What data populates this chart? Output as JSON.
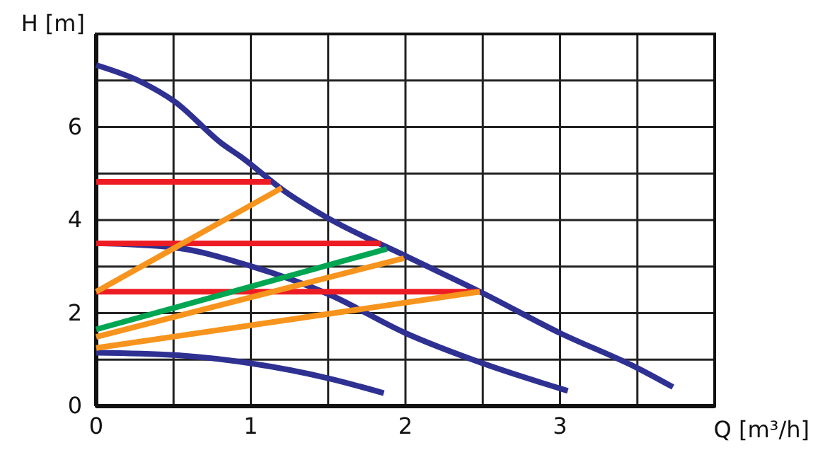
{
  "chart_data": {
    "type": "line",
    "xlabel": "Q [m³/h]",
    "ylabel": "H [m]",
    "grid": true,
    "marker": "none",
    "line_style": "solid",
    "xlim": [
      0,
      4
    ],
    "ylim": [
      0,
      8
    ],
    "xticks": [
      0,
      {
        "value": 0.5,
        "label": null
      },
      1,
      {
        "value": 1.5,
        "label": null
      },
      2,
      {
        "value": 2.5,
        "label": null
      },
      3,
      {
        "value": 3.5,
        "label": null
      },
      {
        "value": 4,
        "label": null
      }
    ],
    "yticks": [
      0,
      {
        "value": 1,
        "label": null
      },
      2,
      {
        "value": 3,
        "label": null
      },
      4,
      {
        "value": 5,
        "label": null
      },
      6,
      {
        "value": 7,
        "label": null
      },
      {
        "value": 8,
        "label": null
      }
    ],
    "series": [
      {
        "color": "#2e3192",
        "x": [
          0,
          0.29,
          0.51,
          0.81,
          0.94,
          1.21,
          1.5,
          2.0,
          2.5,
          3.0,
          3.5,
          3.73
        ],
        "values": [
          7.33,
          6.97,
          6.54,
          5.65,
          5.35,
          4.64,
          4.04,
          3.23,
          2.43,
          1.57,
          0.82,
          0.41
        ]
      },
      {
        "color": "#2e3192",
        "x": [
          0,
          0.5,
          1.0,
          1.5,
          2.0,
          2.5,
          3.05
        ],
        "values": [
          3.5,
          3.41,
          3.01,
          2.41,
          1.57,
          0.92,
          0.33
        ]
      },
      {
        "color": "#2e3192",
        "x": [
          0,
          0.5,
          1.0,
          1.5,
          1.86
        ],
        "values": [
          1.15,
          1.1,
          0.92,
          0.6,
          0.28
        ]
      },
      {
        "color": "#ed1c24",
        "x": [
          0,
          1.13
        ],
        "values": [
          4.82,
          4.82
        ]
      },
      {
        "color": "#ed1c24",
        "x": [
          0,
          1.84
        ],
        "values": [
          3.5,
          3.5
        ]
      },
      {
        "color": "#ed1c24",
        "x": [
          0,
          2.48
        ],
        "values": [
          2.46,
          2.46
        ]
      },
      {
        "color": "#f7941d",
        "x": [
          0,
          1.2
        ],
        "values": [
          2.46,
          4.69
        ]
      },
      {
        "color": "#00a651",
        "x": [
          0,
          1.88
        ],
        "values": [
          1.65,
          3.38
        ]
      },
      {
        "color": "#f7941d",
        "x": [
          0,
          1.99
        ],
        "values": [
          1.49,
          3.18
        ]
      },
      {
        "color": "#f7941d",
        "x": [
          0,
          2.48
        ],
        "values": [
          1.25,
          2.46
        ]
      }
    ]
  }
}
